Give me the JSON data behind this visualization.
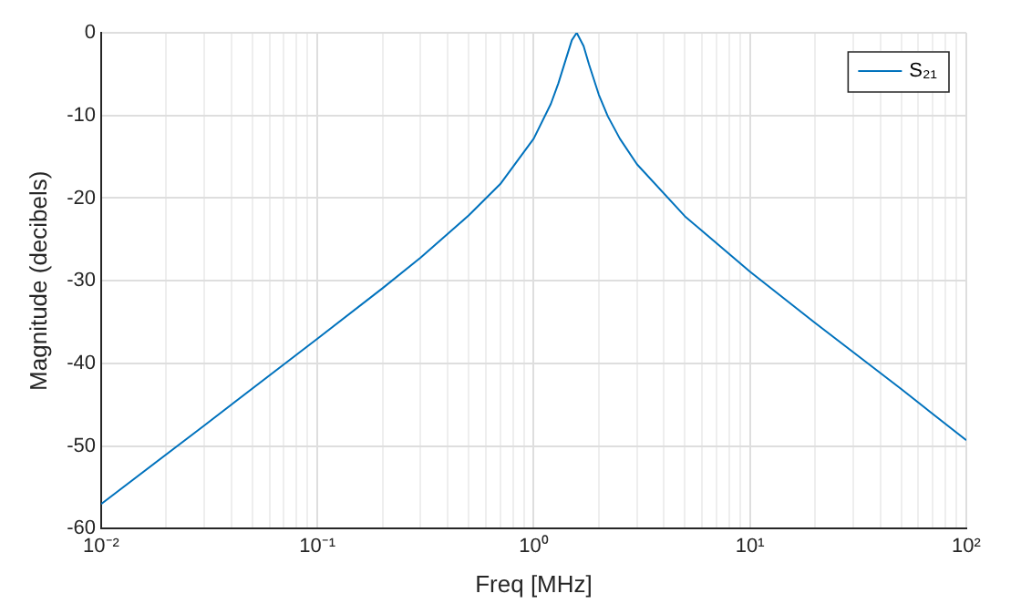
{
  "chart_data": {
    "type": "line",
    "xlabel": "Freq [MHz]",
    "ylabel": "Magnitude (decibels)",
    "log": "x",
    "grid": true,
    "legend": "top right",
    "marker": "none",
    "line_style": "solid",
    "xlim": [
      0.01,
      100
    ],
    "ylim": [
      -60,
      0
    ],
    "xticks": [
      {
        "value": 0.01,
        "label": "10⁻²"
      },
      {
        "value": 0.02,
        "label": null
      },
      {
        "value": 0.03,
        "label": null
      },
      {
        "value": 0.04,
        "label": null
      },
      {
        "value": 0.05,
        "label": null
      },
      {
        "value": 0.06,
        "label": null
      },
      {
        "value": 0.07,
        "label": null
      },
      {
        "value": 0.08,
        "label": null
      },
      {
        "value": 0.09,
        "label": null
      },
      {
        "value": 0.1,
        "label": "10⁻¹"
      },
      {
        "value": 0.2,
        "label": null
      },
      {
        "value": 0.3,
        "label": null
      },
      {
        "value": 0.4,
        "label": null
      },
      {
        "value": 0.5,
        "label": null
      },
      {
        "value": 0.6,
        "label": null
      },
      {
        "value": 0.7,
        "label": null
      },
      {
        "value": 0.8,
        "label": null
      },
      {
        "value": 0.9,
        "label": null
      },
      {
        "value": 1,
        "label": "10⁰"
      },
      {
        "value": 2,
        "label": null
      },
      {
        "value": 3,
        "label": null
      },
      {
        "value": 4,
        "label": null
      },
      {
        "value": 5,
        "label": null
      },
      {
        "value": 6,
        "label": null
      },
      {
        "value": 7,
        "label": null
      },
      {
        "value": 8,
        "label": null
      },
      {
        "value": 9,
        "label": null
      },
      {
        "value": 10,
        "label": "10¹"
      },
      {
        "value": 20,
        "label": null
      },
      {
        "value": 30,
        "label": null
      },
      {
        "value": 40,
        "label": null
      },
      {
        "value": 50,
        "label": null
      },
      {
        "value": 60,
        "label": null
      },
      {
        "value": 70,
        "label": null
      },
      {
        "value": 80,
        "label": null
      },
      {
        "value": 90,
        "label": null
      },
      {
        "value": 100,
        "label": "10²"
      }
    ],
    "yticks": [
      -60,
      -50,
      -40,
      -30,
      -20,
      -10,
      0
    ],
    "series": [
      {
        "name": "S₂₁",
        "color": "#0072bd",
        "x": [
          0.01,
          0.03,
          0.1,
          0.2,
          0.3,
          0.5,
          0.7,
          1,
          1.2,
          1.3,
          1.4,
          1.5,
          1.58,
          1.7,
          1.8,
          2,
          2.2,
          2.5,
          3,
          5,
          10,
          20,
          50,
          100
        ],
        "values": [
          -57,
          -47.5,
          -37,
          -30.9,
          -27.2,
          -22.1,
          -18.3,
          -12.8,
          -8.6,
          -6.1,
          -3.4,
          -0.9,
          0,
          -1.6,
          -3.8,
          -7.5,
          -10.1,
          -12.8,
          -15.9,
          -22.2,
          -28.9,
          -35.1,
          -43.1,
          -49.3
        ]
      }
    ]
  }
}
